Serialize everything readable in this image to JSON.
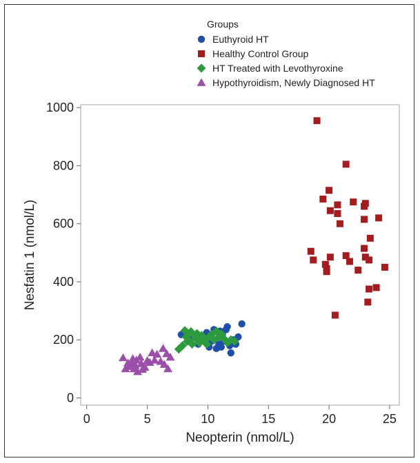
{
  "chart_data": {
    "type": "scatter",
    "xlabel": "Neopterin (nmol/L)",
    "ylabel": "Nesfatin 1 (nmol/L)",
    "xlim": [
      -0.5,
      25.8
    ],
    "ylim": [
      -25,
      1010
    ],
    "x_ticks": [
      0,
      5,
      10,
      15,
      20,
      25
    ],
    "y_ticks": [
      0,
      200,
      400,
      600,
      800,
      1000
    ],
    "x_tick_labels": [
      "0",
      "5",
      "10",
      "15",
      "20",
      "25"
    ],
    "y_tick_labels": [
      "0",
      "200",
      "400",
      "600",
      "800",
      "1000"
    ],
    "grid": false,
    "legend": {
      "title": "Groups",
      "position": "top-right"
    },
    "series": [
      {
        "name": "Euthyroid HT",
        "marker": "circle",
        "color": "#1f4fa8",
        "points": [
          [
            7.8,
            218
          ],
          [
            8.5,
            205
          ],
          [
            9.2,
            185
          ],
          [
            9.6,
            210
          ],
          [
            9.9,
            225
          ],
          [
            10.1,
            175
          ],
          [
            10.3,
            195
          ],
          [
            10.5,
            235
          ],
          [
            10.7,
            170
          ],
          [
            10.9,
            185
          ],
          [
            11.0,
            230
          ],
          [
            11.1,
            175
          ],
          [
            11.2,
            218
          ],
          [
            11.3,
            195
          ],
          [
            11.5,
            235
          ],
          [
            11.6,
            245
          ],
          [
            11.8,
            180
          ],
          [
            11.9,
            155
          ],
          [
            12.1,
            200
          ],
          [
            12.3,
            185
          ],
          [
            12.5,
            210
          ],
          [
            12.8,
            255
          ],
          [
            10.0,
            195
          ],
          [
            9.0,
            215
          ]
        ]
      },
      {
        "name": "Healthy Control Group",
        "marker": "square",
        "color": "#a31d20",
        "points": [
          [
            19.0,
            955
          ],
          [
            21.4,
            805
          ],
          [
            20.0,
            715
          ],
          [
            19.5,
            685
          ],
          [
            22.0,
            675
          ],
          [
            20.7,
            665
          ],
          [
            23.0,
            670
          ],
          [
            22.9,
            660
          ],
          [
            20.1,
            645
          ],
          [
            20.7,
            635
          ],
          [
            22.9,
            615
          ],
          [
            24.1,
            620
          ],
          [
            20.9,
            600
          ],
          [
            23.4,
            550
          ],
          [
            22.9,
            515
          ],
          [
            18.5,
            505
          ],
          [
            21.4,
            490
          ],
          [
            23.0,
            485
          ],
          [
            18.7,
            475
          ],
          [
            20.1,
            485
          ],
          [
            21.7,
            470
          ],
          [
            23.3,
            475
          ],
          [
            19.7,
            460
          ],
          [
            19.8,
            445
          ],
          [
            19.8,
            435
          ],
          [
            22.4,
            440
          ],
          [
            24.6,
            450
          ],
          [
            23.9,
            380
          ],
          [
            23.3,
            375
          ],
          [
            23.2,
            330
          ],
          [
            20.5,
            285
          ]
        ]
      },
      {
        "name": "HT Treated with Levothyroxine",
        "marker": "diamond",
        "color": "#2e9a3e",
        "points": [
          [
            7.6,
            168
          ],
          [
            7.9,
            180
          ],
          [
            8.1,
            232
          ],
          [
            8.2,
            210
          ],
          [
            8.4,
            220
          ],
          [
            8.5,
            195
          ],
          [
            8.6,
            228
          ],
          [
            8.7,
            185
          ],
          [
            8.9,
            215
          ],
          [
            9.1,
            222
          ],
          [
            9.2,
            200
          ],
          [
            9.3,
            190
          ],
          [
            9.5,
            215
          ],
          [
            9.7,
            200
          ],
          [
            9.9,
            185
          ],
          [
            10.1,
            210
          ],
          [
            10.3,
            218
          ],
          [
            10.5,
            200
          ],
          [
            10.7,
            230
          ],
          [
            10.9,
            210
          ],
          [
            11.1,
            220
          ],
          [
            11.3,
            205
          ],
          [
            11.6,
            190
          ],
          [
            11.9,
            200
          ],
          [
            12.2,
            195
          ],
          [
            8.3,
            195
          ],
          [
            9.0,
            205
          ]
        ]
      },
      {
        "name": "Hypothyroidism, Newly Diagnosed HT",
        "marker": "triangle",
        "color": "#9b4fa8",
        "points": [
          [
            3.0,
            138
          ],
          [
            3.2,
            100
          ],
          [
            3.4,
            120
          ],
          [
            3.5,
            108
          ],
          [
            3.7,
            115
          ],
          [
            3.9,
            100
          ],
          [
            4.1,
            130
          ],
          [
            4.2,
            90
          ],
          [
            4.4,
            140
          ],
          [
            4.5,
            118
          ],
          [
            4.6,
            98
          ],
          [
            4.8,
            105
          ],
          [
            5.0,
            128
          ],
          [
            5.2,
            122
          ],
          [
            5.4,
            155
          ],
          [
            5.6,
            130
          ],
          [
            5.8,
            150
          ],
          [
            6.1,
            125
          ],
          [
            6.3,
            170
          ],
          [
            6.4,
            115
          ],
          [
            6.6,
            152
          ],
          [
            6.7,
            100
          ],
          [
            6.9,
            140
          ],
          [
            3.8,
            135
          ],
          [
            4.0,
            112
          ]
        ]
      }
    ]
  }
}
